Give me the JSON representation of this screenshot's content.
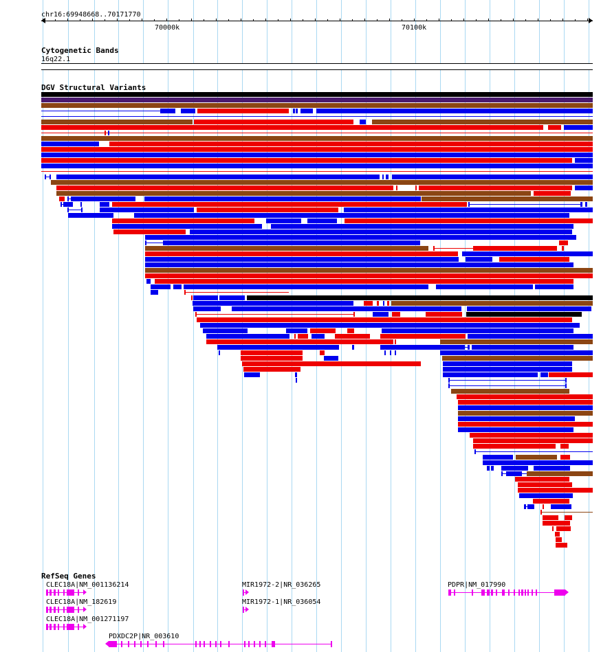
{
  "ruler": {
    "region_label": "chr16:69948668..70171770",
    "tick_70000": "70000k",
    "tick_70100": "70100k"
  },
  "cytobands": {
    "title": "Cytogenetic Bands",
    "band": "16q22.1"
  },
  "dgv": {
    "title": "DGV Structural Variants"
  },
  "colors": {
    "gain": "#0000ee",
    "loss": "#ee0000",
    "gain_loss": "#8b4513",
    "inversion": "#4b1a6e",
    "black": "#000000",
    "gene": "#ee00ee",
    "grid": "#a9d8f2"
  },
  "refseq": {
    "title": "RefSeq Genes",
    "genes": [
      {
        "label": "CLEC18A|NM_001136214"
      },
      {
        "label": "CLEC18A|NM_182619"
      },
      {
        "label": "CLEC18A|NM_001271197"
      },
      {
        "label": "PDXDC2P|NR_003610"
      },
      {
        "label": "MIR1972-2|NR_036265"
      },
      {
        "label": "MIR1972-1|NR_036054"
      },
      {
        "label": "PDPR|NM_017990"
      }
    ]
  }
}
